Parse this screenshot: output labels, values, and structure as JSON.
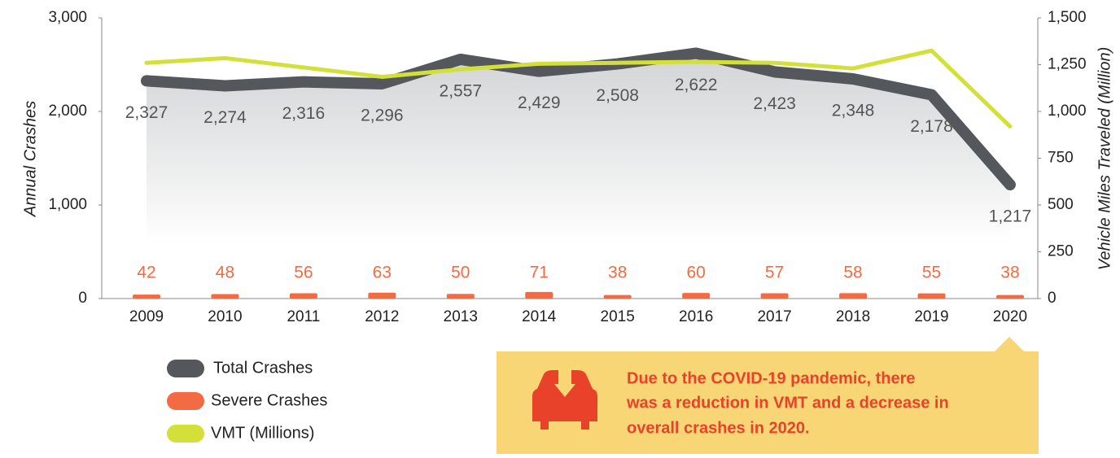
{
  "chart_data": {
    "type": "line",
    "y_label": "Annual Crashes",
    "y2_label": "Vehicle Miles Traveled (Million)",
    "categories": [
      "2009",
      "2010",
      "2011",
      "2012",
      "2013",
      "2014",
      "2015",
      "2016",
      "2017",
      "2018",
      "2019",
      "2020"
    ],
    "series": [
      {
        "name": "Total Crashes",
        "type": "line",
        "color": "#54575c",
        "values": [
          2327,
          2274,
          2316,
          2296,
          2557,
          2429,
          2508,
          2622,
          2423,
          2348,
          2178,
          1217
        ],
        "value_labels": [
          "2,327",
          "2,274",
          "2,316",
          "2,296",
          "2,557",
          "2,429",
          "2,508",
          "2,622",
          "2,423",
          "2,348",
          "2,178",
          "1,217"
        ]
      },
      {
        "name": "Severe Crashes",
        "type": "bar",
        "color": "#f26b43",
        "values": [
          42,
          48,
          56,
          63,
          50,
          71,
          38,
          60,
          57,
          58,
          55,
          38
        ]
      },
      {
        "name": "VMT (Millions)",
        "type": "line",
        "axis": "y2",
        "color": "#d4e03a",
        "values": [
          1260,
          1285,
          1235,
          1185,
          1225,
          1255,
          1260,
          1265,
          1260,
          1230,
          1325,
          920
        ]
      }
    ],
    "ylim": [
      0,
      3000
    ],
    "yticks": [
      0,
      {
        "value": 1000,
        "label": "1,000"
      },
      {
        "value": 2000,
        "label": "2,000"
      },
      {
        "value": 3000,
        "label": "3,000"
      }
    ],
    "y2lim": [
      0,
      1500
    ],
    "y2ticks": [
      0,
      250,
      500,
      750,
      {
        "value": 1000,
        "label": "1,000"
      },
      {
        "value": 1250,
        "label": "1,250"
      },
      {
        "value": 1500,
        "label": "1,500"
      }
    ],
    "annotation": [
      "Due to the COVID-19 pandemic, there",
      "was a reduction in VMT and a decrease in",
      "overall crashes in 2020."
    ]
  }
}
